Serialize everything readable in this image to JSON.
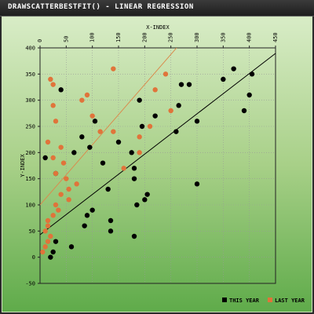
{
  "window": {
    "title": "DRAWSCATTERBESTFIT() - LINEAR REGRESSION"
  },
  "colors": {
    "this_year": "#000000",
    "last_year": "#e0743a",
    "fit_this_year": "#000000",
    "fit_last_year": "#d98c4e",
    "grid": "#999999"
  },
  "chart_data": {
    "type": "scatter",
    "title": "DRAWSCATTERBESTFIT() - LINEAR REGRESSION",
    "xlabel": "X-INDEX",
    "ylabel": "Y-INDEX",
    "xlim": [
      0,
      450
    ],
    "ylim": [
      -50,
      400
    ],
    "x_ticks": [
      0,
      50,
      100,
      150,
      200,
      250,
      300,
      350,
      400,
      450
    ],
    "y_ticks": [
      -50,
      0,
      50,
      100,
      150,
      200,
      250,
      300,
      350,
      400
    ],
    "grid": true,
    "legend_position": "bottom-right",
    "series": [
      {
        "name": "THIS YEAR",
        "color": "#000000",
        "points": [
          [
            10,
            190
          ],
          [
            30,
            160
          ],
          [
            65,
            200
          ],
          [
            40,
            320
          ],
          [
            120,
            180
          ],
          [
            105,
            260
          ],
          [
            80,
            230
          ],
          [
            95,
            210
          ],
          [
            150,
            220
          ],
          [
            175,
            200
          ],
          [
            190,
            300
          ],
          [
            195,
            250
          ],
          [
            220,
            270
          ],
          [
            260,
            240
          ],
          [
            265,
            290
          ],
          [
            285,
            330
          ],
          [
            300,
            260
          ],
          [
            270,
            330
          ],
          [
            350,
            340
          ],
          [
            370,
            360
          ],
          [
            390,
            280
          ],
          [
            400,
            310
          ],
          [
            405,
            350
          ],
          [
            180,
            170
          ],
          [
            180,
            150
          ],
          [
            200,
            110
          ],
          [
            185,
            100
          ],
          [
            205,
            120
          ],
          [
            130,
            130
          ],
          [
            135,
            70
          ],
          [
            135,
            50
          ],
          [
            180,
            40
          ],
          [
            100,
            90
          ],
          [
            90,
            80
          ],
          [
            85,
            60
          ],
          [
            60,
            20
          ],
          [
            30,
            30
          ],
          [
            25,
            10
          ],
          [
            20,
            0
          ],
          [
            300,
            140
          ]
        ]
      },
      {
        "name": "LAST YEAR",
        "color": "#e0743a",
        "points": [
          [
            20,
            340
          ],
          [
            25,
            290
          ],
          [
            25,
            330
          ],
          [
            30,
            260
          ],
          [
            15,
            220
          ],
          [
            25,
            190
          ],
          [
            30,
            160
          ],
          [
            40,
            210
          ],
          [
            50,
            150
          ],
          [
            45,
            180
          ],
          [
            55,
            130
          ],
          [
            70,
            140
          ],
          [
            80,
            300
          ],
          [
            90,
            310
          ],
          [
            100,
            270
          ],
          [
            115,
            240
          ],
          [
            140,
            240
          ],
          [
            140,
            360
          ],
          [
            160,
            170
          ],
          [
            190,
            200
          ],
          [
            190,
            230
          ],
          [
            210,
            250
          ],
          [
            220,
            320
          ],
          [
            240,
            350
          ],
          [
            250,
            280
          ],
          [
            40,
            120
          ],
          [
            55,
            110
          ],
          [
            30,
            100
          ],
          [
            35,
            90
          ],
          [
            25,
            80
          ],
          [
            15,
            70
          ],
          [
            15,
            60
          ],
          [
            10,
            50
          ],
          [
            20,
            40
          ],
          [
            15,
            30
          ],
          [
            10,
            20
          ],
          [
            5,
            10
          ]
        ]
      }
    ],
    "best_fit": [
      {
        "series": "THIS YEAR",
        "slope": 0.77,
        "intercept": 43
      },
      {
        "series": "LAST YEAR",
        "slope": 1.15,
        "intercept": 100
      }
    ]
  },
  "legend": {
    "items": [
      "THIS YEAR",
      "LAST YEAR"
    ]
  }
}
